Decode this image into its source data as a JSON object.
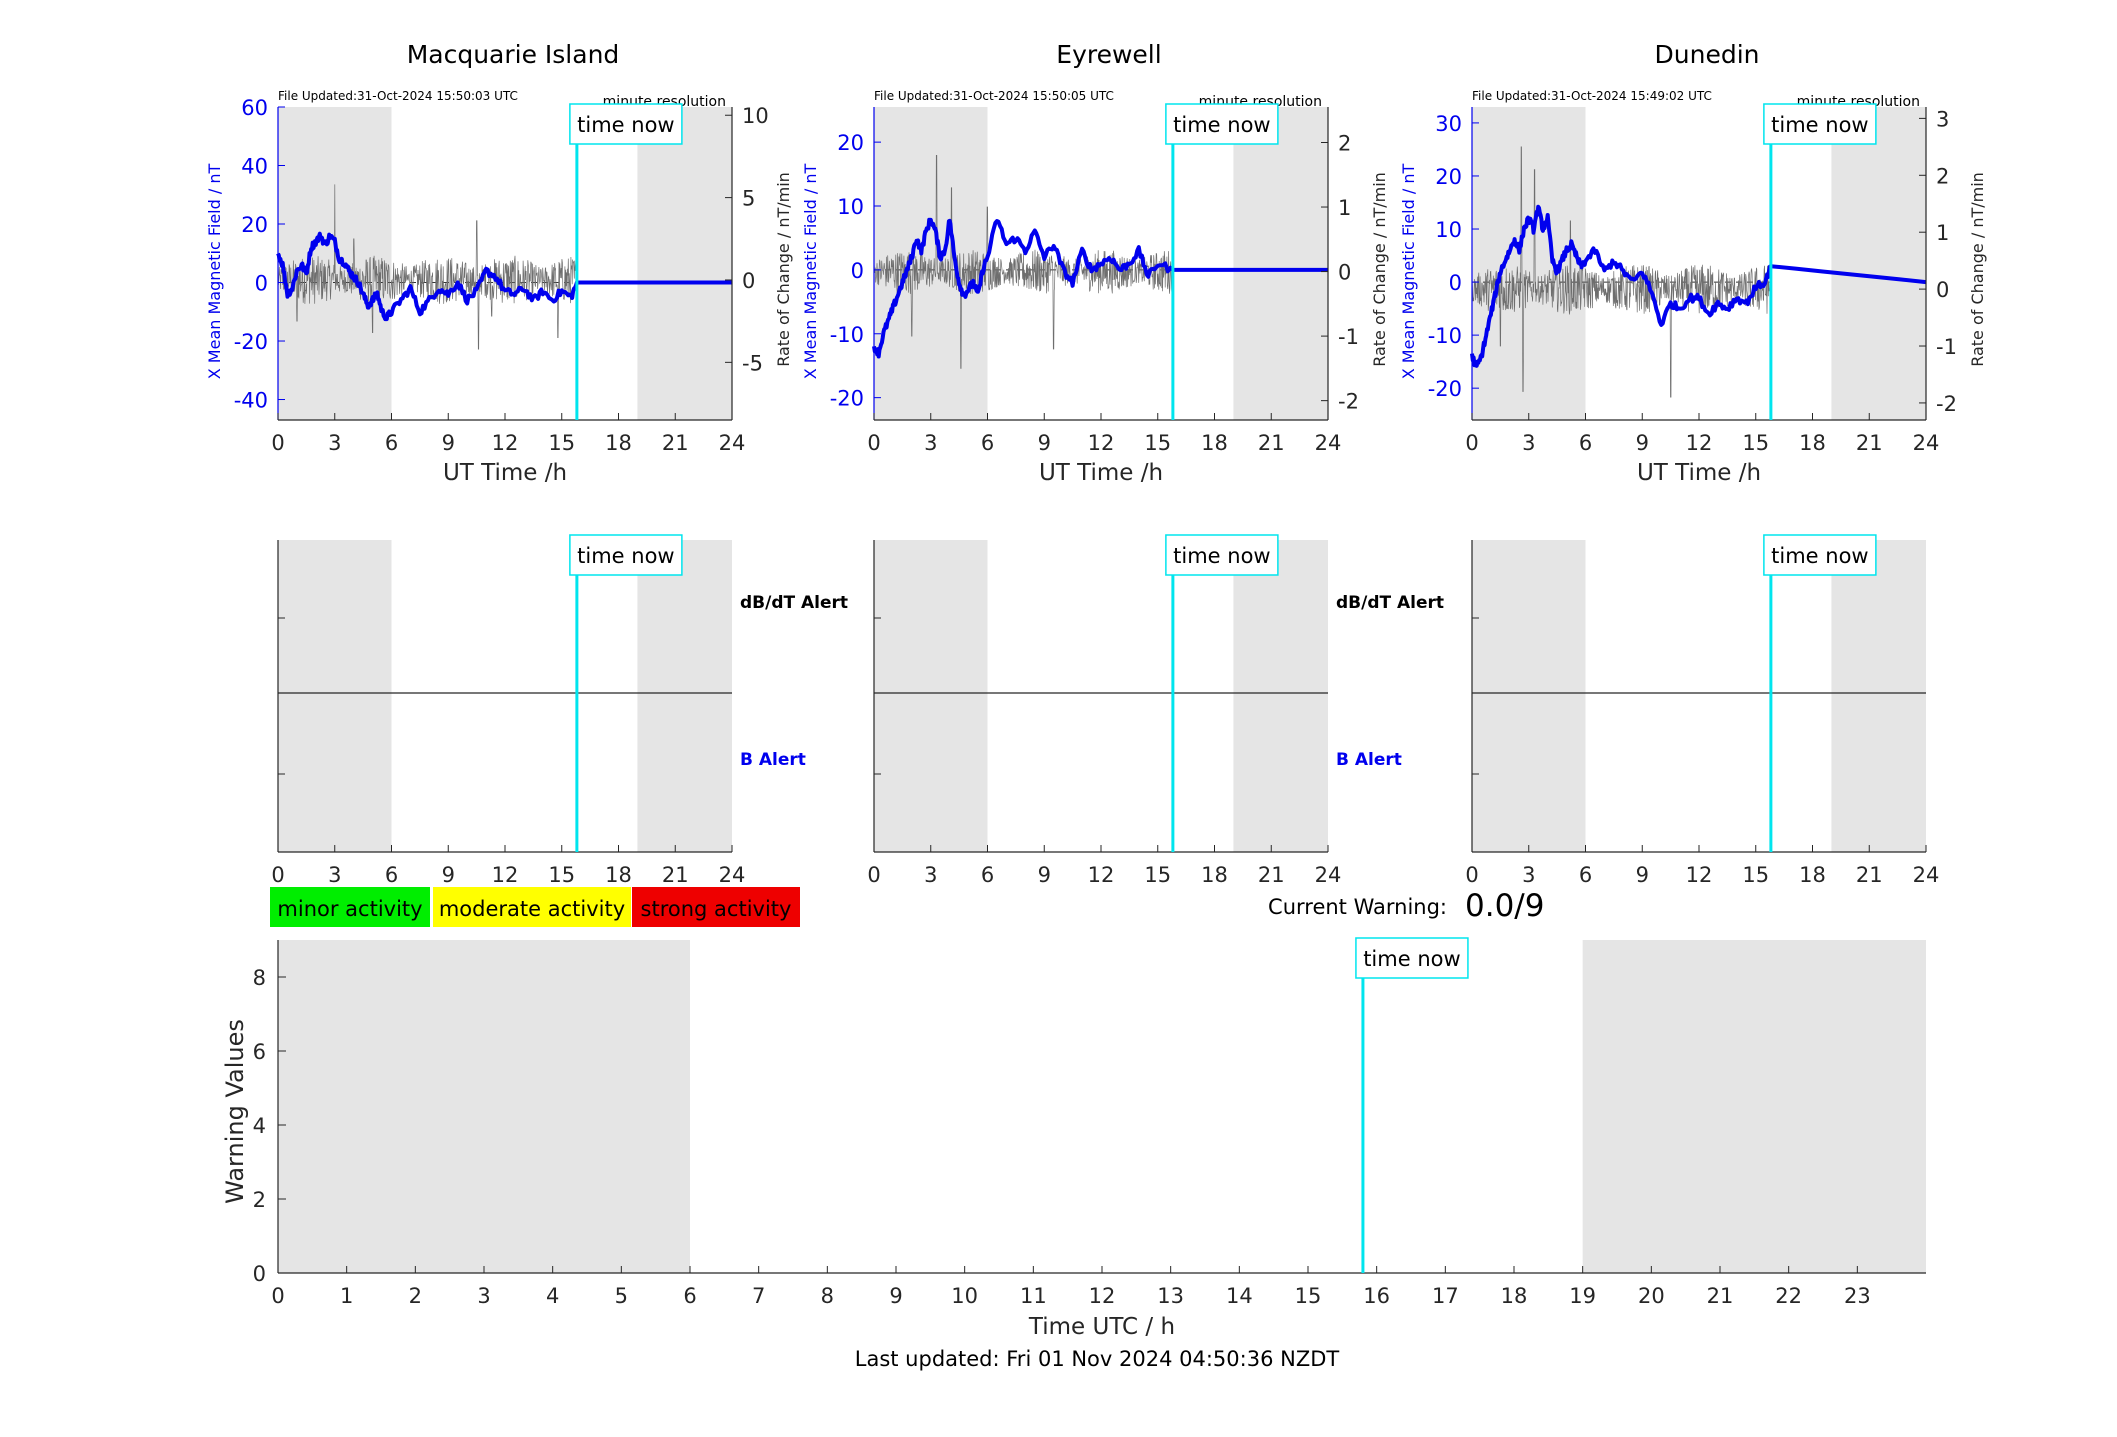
{
  "footer": {
    "last_updated": "Last updated: Fri 01 Nov 2024 04:50:36 NZDT"
  },
  "time_now_label": "time now",
  "time_now_hour": 15.8,
  "night_bands_hours": [
    [
      0,
      6
    ],
    [
      19,
      24
    ]
  ],
  "colors": {
    "x_field": "#0000ee",
    "rate_of_change": "#6e6e6e",
    "time_now_line": "#00e5ee",
    "night_band": "#e5e5e5",
    "minor_activity": "#00ee00",
    "moderate_activity": "#ffff00",
    "strong_activity": "#ee0000",
    "b_alert_text": "#0000ee"
  },
  "legend": {
    "minor": "minor activity",
    "moderate": "moderate activity",
    "strong": "strong activity"
  },
  "current_warning": {
    "label": "Current Warning:",
    "value": "0.0/9"
  },
  "alert_labels": {
    "dbdt": "dB/dT Alert",
    "b": "B Alert"
  },
  "chart_data": [
    {
      "type": "line",
      "title": "Macquarie Island",
      "file_updated": "File Updated:31-Oct-2024 15:50:03 UTC",
      "resolution": "minute resolution",
      "xlabel": "UT Time /h",
      "ylabel_left": "X Mean Magnetic Field / nT",
      "ylabel_right": "Rate of Change / nT/min",
      "xlim": [
        0,
        24
      ],
      "xticks": [
        0,
        3,
        6,
        9,
        12,
        15,
        18,
        21,
        24
      ],
      "ylim_left": [
        -47,
        60
      ],
      "yticks_left": [
        -40,
        -20,
        0,
        20,
        40,
        60
      ],
      "ylim_right": [
        -8.5,
        10.5
      ],
      "yticks_right": [
        -5,
        0,
        5,
        10
      ],
      "series": [
        {
          "axis": "left",
          "x": [
            0,
            0.25,
            0.5,
            0.75,
            1,
            1.25,
            1.5,
            1.75,
            2,
            2.25,
            2.5,
            2.75,
            3,
            3.25,
            3.5,
            3.75,
            4,
            4.25,
            4.5,
            4.75,
            5,
            5.25,
            5.5,
            5.75,
            6,
            6.5,
            7,
            7.5,
            8,
            8.5,
            9,
            9.5,
            10,
            10.5,
            11,
            11.5,
            12,
            12.5,
            13,
            13.5,
            14,
            14.5,
            15,
            15.5,
            15.8,
            24
          ],
          "y": [
            10,
            6,
            -4,
            -2,
            4,
            6,
            3,
            12,
            14,
            16,
            13,
            16,
            14,
            8,
            7,
            4,
            2,
            0,
            -4,
            -8,
            -6,
            -4,
            -10,
            -12,
            -10,
            -6,
            -2,
            -10,
            -6,
            -2,
            -4,
            0,
            -6,
            -3,
            4,
            2,
            -3,
            -4,
            -2,
            -6,
            -3,
            -6,
            -3,
            -5,
            0,
            0
          ]
        },
        {
          "axis": "right",
          "style": "noise",
          "x_start": 0,
          "x_end": 15.8,
          "amplitude": 1.5,
          "spikes": [
            [
              3,
              5.8
            ],
            [
              4,
              2.5
            ],
            [
              10.5,
              3.6
            ],
            [
              10.6,
              -4.2
            ],
            [
              11.3,
              -2.2
            ],
            [
              14.8,
              -3.5
            ],
            [
              1,
              -2.5
            ],
            [
              5,
              -3.2
            ]
          ]
        }
      ]
    },
    {
      "type": "line",
      "title": "Eyrewell",
      "file_updated": "File Updated:31-Oct-2024 15:50:05 UTC",
      "resolution": "minute resolution",
      "xlabel": "UT Time /h",
      "ylabel_left": "X Mean Magnetic Field / nT",
      "ylabel_right": "Rate of Change / nT/min",
      "xlim": [
        0,
        24
      ],
      "xticks": [
        0,
        3,
        6,
        9,
        12,
        15,
        18,
        21,
        24
      ],
      "ylim_left": [
        -23.5,
        25.5
      ],
      "yticks_left": [
        -20,
        -10,
        0,
        10,
        20
      ],
      "ylim_right": [
        -2.3,
        2.55
      ],
      "yticks_right": [
        -2,
        -1,
        0,
        1,
        2
      ],
      "series": [
        {
          "axis": "left",
          "x": [
            0,
            0.25,
            0.5,
            0.75,
            1,
            1.25,
            1.5,
            1.75,
            2,
            2.25,
            2.5,
            2.75,
            3,
            3.25,
            3.5,
            3.75,
            4,
            4.25,
            4.5,
            4.75,
            5,
            5.25,
            5.5,
            5.75,
            6,
            6.5,
            7,
            7.5,
            8,
            8.5,
            9,
            9.5,
            10,
            10.5,
            11,
            11.5,
            12,
            12.5,
            13,
            13.5,
            14,
            14.5,
            15,
            15.8,
            24
          ],
          "y": [
            -12,
            -13,
            -10,
            -8,
            -6,
            -4,
            -2,
            0,
            2,
            5,
            3,
            6,
            8,
            6,
            2,
            3,
            8,
            2,
            -2,
            -4,
            -3,
            -2,
            -4,
            0,
            2,
            8,
            4,
            5,
            3,
            6,
            2,
            4,
            0,
            -2,
            3,
            0,
            1,
            2,
            0,
            1,
            3,
            -1,
            1,
            0,
            0
          ]
        },
        {
          "axis": "right",
          "style": "noise",
          "x_start": 0,
          "x_end": 15.8,
          "amplitude": 0.35,
          "spikes": [
            [
              3.3,
              1.8
            ],
            [
              4.1,
              1.3
            ],
            [
              4.6,
              -1.5
            ],
            [
              9.5,
              -1.2
            ],
            [
              2,
              -1.0
            ],
            [
              6,
              1.0
            ]
          ]
        }
      ]
    },
    {
      "type": "line",
      "title": "Dunedin",
      "file_updated": "File Updated:31-Oct-2024 15:49:02 UTC",
      "resolution": "minute resolution",
      "xlabel": "UT Time /h",
      "ylabel_left": "X Mean Magnetic Field / nT",
      "ylabel_right": "Rate of Change / nT/min",
      "xlim": [
        0,
        24
      ],
      "xticks": [
        0,
        3,
        6,
        9,
        12,
        15,
        18,
        21,
        24
      ],
      "ylim_left": [
        -26,
        33
      ],
      "yticks_left": [
        -20,
        -10,
        0,
        10,
        20,
        30
      ],
      "ylim_right": [
        -2.3,
        3.2
      ],
      "yticks_right": [
        -2,
        -1,
        0,
        1,
        2,
        3
      ],
      "series": [
        {
          "axis": "left",
          "x": [
            0,
            0.25,
            0.5,
            0.75,
            1,
            1.25,
            1.5,
            1.75,
            2,
            2.25,
            2.5,
            2.75,
            3,
            3.25,
            3.5,
            3.75,
            4,
            4.25,
            4.5,
            4.75,
            5,
            5.25,
            5.5,
            5.75,
            6,
            6.5,
            7,
            7.5,
            8,
            8.5,
            9,
            9.5,
            10,
            10.5,
            11,
            11.5,
            12,
            12.5,
            13,
            13.5,
            14,
            14.5,
            15,
            15.5,
            15.8,
            24
          ],
          "y": [
            -14,
            -16,
            -14,
            -10,
            -6,
            -2,
            2,
            4,
            6,
            8,
            6,
            10,
            12,
            10,
            14,
            10,
            12,
            4,
            2,
            4,
            6,
            7,
            5,
            3,
            4,
            6,
            2,
            4,
            2,
            0,
            2,
            -2,
            -8,
            -4,
            -5,
            -3,
            -3,
            -6,
            -4,
            -5,
            -3,
            -4,
            -1,
            0,
            3,
            0
          ]
        },
        {
          "axis": "right",
          "style": "noise",
          "x_start": 0,
          "x_end": 15.8,
          "amplitude": 0.45,
          "spikes": [
            [
              2.6,
              2.5
            ],
            [
              2.7,
              -1.8
            ],
            [
              3.3,
              2.1
            ],
            [
              10.5,
              -1.9
            ],
            [
              1.5,
              -1.0
            ],
            [
              5.2,
              1.2
            ]
          ]
        }
      ]
    },
    {
      "type": "line",
      "title": "",
      "xlim": [
        0,
        24
      ],
      "xticks": [
        0,
        3,
        6,
        9,
        12,
        15,
        18,
        21,
        24
      ],
      "upper_label": "dB/dT Alert",
      "lower_label": "B Alert",
      "series": []
    },
    {
      "type": "line",
      "title": "",
      "xlim": [
        0,
        24
      ],
      "xticks": [
        0,
        3,
        6,
        9,
        12,
        15,
        18,
        21,
        24
      ],
      "upper_label": "dB/dT Alert",
      "lower_label": "B Alert",
      "series": []
    },
    {
      "type": "line",
      "title": "",
      "xlim": [
        0,
        24
      ],
      "xticks": [
        0,
        3,
        6,
        9,
        12,
        15,
        18,
        21,
        24
      ],
      "series": []
    },
    {
      "type": "line",
      "title": "",
      "xlabel": "Time UTC / h",
      "ylabel": "Warning Values",
      "xlim": [
        0,
        24
      ],
      "xticks": [
        0,
        1,
        2,
        3,
        4,
        5,
        6,
        7,
        8,
        9,
        10,
        11,
        12,
        13,
        14,
        15,
        16,
        17,
        18,
        19,
        20,
        21,
        22,
        23
      ],
      "ylim": [
        0,
        9
      ],
      "yticks": [
        0,
        2,
        4,
        6,
        8
      ],
      "series": []
    }
  ]
}
